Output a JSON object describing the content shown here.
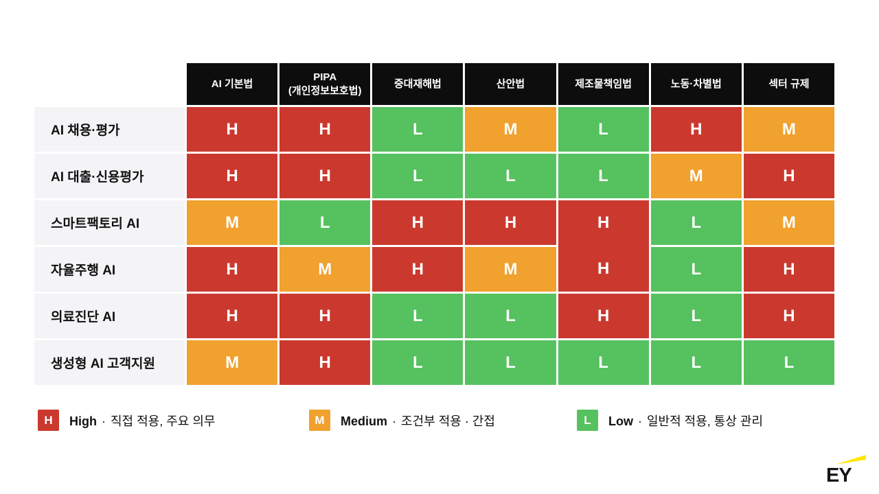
{
  "chart_data": {
    "type": "heatmap",
    "columns": [
      "AI 기본법",
      "PIPA\n(개인정보보호법)",
      "중대재해법",
      "산안법",
      "제조물책임법",
      "노동·차별법",
      "섹터 규제"
    ],
    "rows": [
      {
        "label": "AI 채용·평가",
        "cells": [
          "H",
          "H",
          "L",
          "M",
          "L",
          "H",
          "M"
        ]
      },
      {
        "label": "AI 대출·신용평가",
        "cells": [
          "H",
          "H",
          "L",
          "L",
          "L",
          "M",
          "H"
        ]
      },
      {
        "label": "스마트팩토리 AI",
        "cells": [
          "M",
          "L",
          "H",
          "H",
          "H",
          "L",
          "M"
        ]
      },
      {
        "label": "자율주행 AI",
        "cells": [
          "H",
          "M",
          "H",
          "M",
          "H",
          "L",
          "H"
        ]
      },
      {
        "label": "의료진단 AI",
        "cells": [
          "H",
          "H",
          "L",
          "L",
          "H",
          "L",
          "H"
        ]
      },
      {
        "label": "생성형 AI 고객지원",
        "cells": [
          "M",
          "H",
          "L",
          "L",
          "L",
          "L",
          "L"
        ]
      }
    ],
    "merged_cell": {
      "row_start": 2,
      "col": 4,
      "row_span": 2
    },
    "levels": {
      "H": "#CB392E",
      "M": "#F0A12E",
      "L": "#56C15F"
    },
    "header_bg": "#0d0d0d",
    "row_label_bg": "#f4f3f6"
  },
  "legend": [
    {
      "letter": "H",
      "color": "#CB392E",
      "title": "High",
      "separator": "·",
      "description": "직접 적용, 주요 의무"
    },
    {
      "letter": "M",
      "color": "#F0A12E",
      "title": "Medium",
      "separator": "·",
      "description": "조건부 적용 · 간접"
    },
    {
      "letter": "L",
      "color": "#56C15F",
      "title": "Low",
      "separator": "·",
      "description": "일반적 적용, 통상 관리"
    }
  ],
  "logo": {
    "text": "EY",
    "beam_color": "#FFE600"
  }
}
